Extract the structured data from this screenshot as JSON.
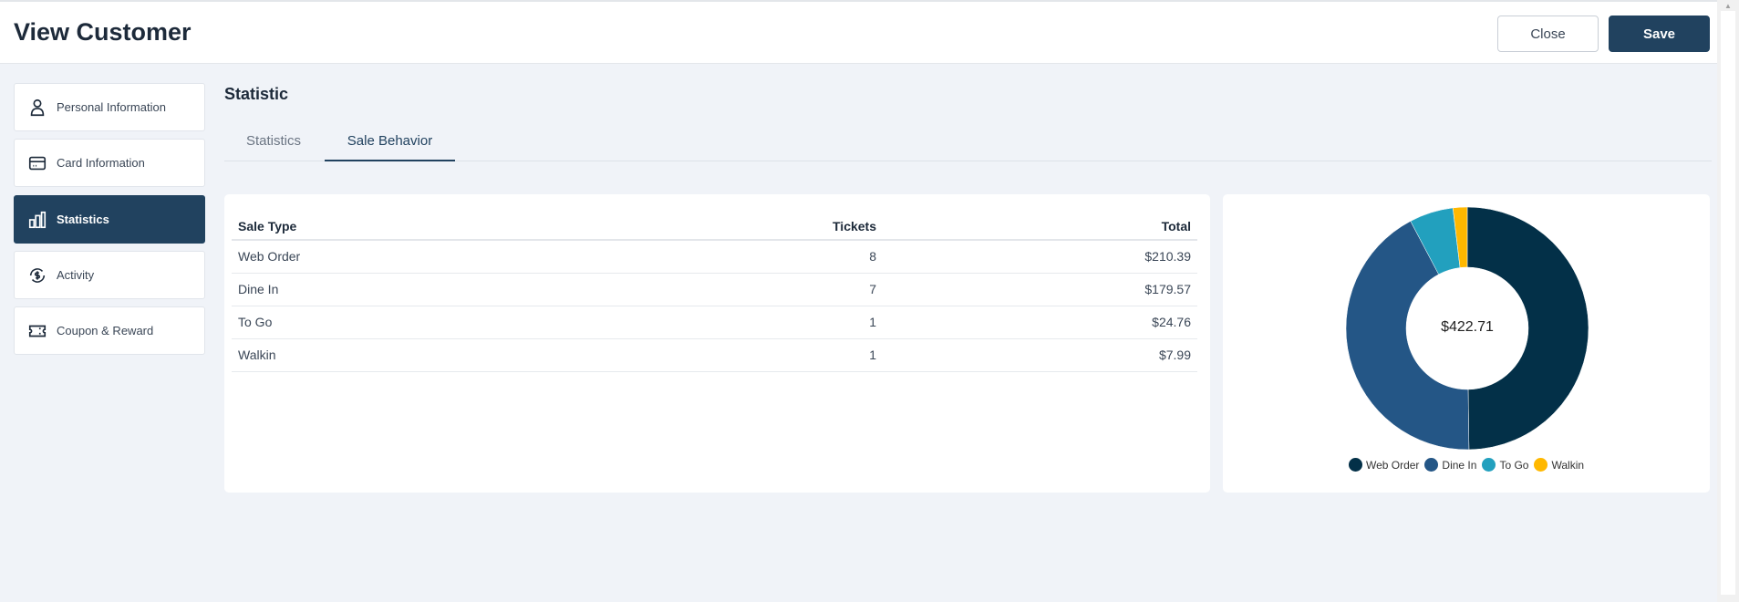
{
  "header": {
    "title": "View Customer",
    "close_label": "Close",
    "save_label": "Save"
  },
  "sidebar": {
    "items": [
      {
        "label": "Personal Information",
        "icon": "user-icon"
      },
      {
        "label": "Card Information",
        "icon": "card-icon"
      },
      {
        "label": "Statistics",
        "icon": "bar-chart-icon",
        "active": true
      },
      {
        "label": "Activity",
        "icon": "dollar-cycle-icon"
      },
      {
        "label": "Coupon & Reward",
        "icon": "ticket-icon"
      }
    ]
  },
  "main": {
    "title": "Statistic",
    "tabs": [
      {
        "label": "Statistics"
      },
      {
        "label": "Sale Behavior",
        "active": true
      }
    ],
    "table": {
      "columns": [
        "Sale Type",
        "Tickets",
        "Total"
      ],
      "rows": [
        [
          "Web Order",
          "8",
          "$210.39"
        ],
        [
          "Dine In",
          "7",
          "$179.57"
        ],
        [
          "To Go",
          "1",
          "$24.76"
        ],
        [
          "Walkin",
          "1",
          "$7.99"
        ]
      ]
    }
  },
  "chart_data": {
    "type": "pie",
    "donut": true,
    "center_label": "$422.71",
    "categories": [
      "Web Order",
      "Dine In",
      "To Go",
      "Walkin"
    ],
    "values": [
      210.39,
      179.57,
      24.76,
      7.99
    ],
    "colors": [
      "#033048",
      "#245686",
      "#22a0be",
      "#ffb800"
    ],
    "legend_position": "bottom"
  }
}
